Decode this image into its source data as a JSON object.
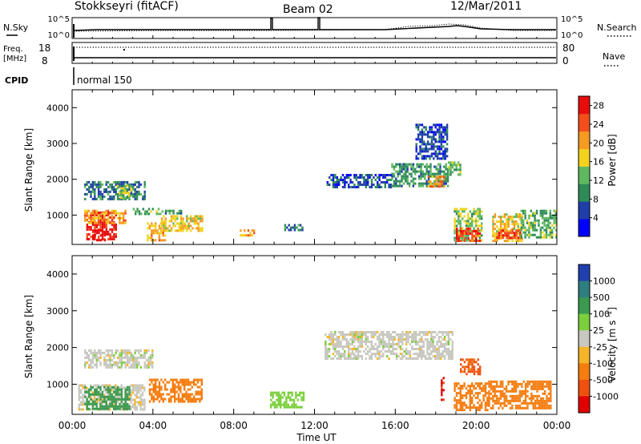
{
  "header": {
    "station": "Stokkseyri (fitACF)",
    "beam": "Beam 02",
    "date": "12/Mar/2011"
  },
  "strip": {
    "nsky_label": "N.Sky",
    "nsky_ticks": [
      "10^5",
      "10^0"
    ],
    "nsearch_label": "N.Search",
    "nsearch_ticks": [
      "10^5",
      "10^0"
    ],
    "freq_label": "Freq.",
    "freq_unit": "[MHz]",
    "freq_ticks": [
      "18",
      "8"
    ],
    "nave_label": "Nave",
    "nave_ticks": [
      "80",
      "0"
    ],
    "cpid_label": "CPID",
    "cpid_value": "normal 150"
  },
  "xaxis": {
    "ticks": [
      "00:00",
      "04:00",
      "08:00",
      "12:00",
      "16:00",
      "20:00",
      "00:00"
    ],
    "label": "Time UT"
  },
  "colors": {
    "power": [
      "#0000ff",
      "#1f3ea8",
      "#2e8b57",
      "#5fb85f",
      "#f2d21e",
      "#f59b22",
      "#f24f1c",
      "#e80d0d"
    ],
    "velocity": [
      "#2040b0",
      "#2e7f7f",
      "#3a9a50",
      "#7ccf3c",
      "#c8c8c0",
      "#f5b52a",
      "#f57d10",
      "#ee5010",
      "#e00000"
    ]
  },
  "chart_data": [
    {
      "type": "heatmap",
      "title": "",
      "xlabel": "",
      "ylabel": "Slant Range [km]",
      "xlim": [
        "00:00",
        "24:00"
      ],
      "ylim": [
        180,
        4500
      ],
      "yticks": [
        "1000",
        "2000",
        "3000",
        "4000"
      ],
      "colorbar": {
        "label": "Power [dB]",
        "ticks": [
          "4",
          "8",
          "12",
          "16",
          "20",
          "24",
          "28"
        ],
        "range": [
          0,
          30
        ]
      },
      "regions": [
        {
          "t0": 0.7,
          "t1": 2.2,
          "r0": 300,
          "r1": 1100,
          "value": 28
        },
        {
          "t0": 1.0,
          "t1": 1.6,
          "r0": 300,
          "r1": 600,
          "value": 30
        },
        {
          "t0": 0.5,
          "t1": 2.6,
          "r0": 800,
          "r1": 1150,
          "value": 20
        },
        {
          "t0": 0.6,
          "t1": 3.6,
          "r0": 1450,
          "r1": 1950,
          "value": 8
        },
        {
          "t0": 2.2,
          "t1": 2.9,
          "r0": 1500,
          "r1": 1850,
          "value": 14
        },
        {
          "t0": 3.0,
          "t1": 4.5,
          "r0": 1000,
          "r1": 1200,
          "value": 12
        },
        {
          "t0": 3.7,
          "t1": 4.6,
          "r0": 300,
          "r1": 800,
          "value": 20
        },
        {
          "t0": 4.4,
          "t1": 6.4,
          "r0": 550,
          "r1": 1000,
          "value": 18
        },
        {
          "t0": 4.5,
          "t1": 5.5,
          "r0": 1050,
          "r1": 1150,
          "value": 10
        },
        {
          "t0": 8.3,
          "t1": 9.0,
          "r0": 400,
          "r1": 600,
          "value": 20
        },
        {
          "t0": 10.5,
          "t1": 11.4,
          "r0": 550,
          "r1": 750,
          "value": 8
        },
        {
          "t0": 12.6,
          "t1": 15.8,
          "r0": 1750,
          "r1": 2150,
          "value": 6
        },
        {
          "t0": 15.8,
          "t1": 18.6,
          "r0": 1800,
          "r1": 2450,
          "value": 10
        },
        {
          "t0": 17.6,
          "t1": 18.4,
          "r0": 1800,
          "r1": 2100,
          "value": 22
        },
        {
          "t0": 18.6,
          "t1": 19.2,
          "r0": 2150,
          "r1": 2500,
          "value": 12
        },
        {
          "t0": 18.9,
          "t1": 20.3,
          "r0": 300,
          "r1": 1200,
          "value": 14
        },
        {
          "t0": 19.0,
          "t1": 20.2,
          "r0": 300,
          "r1": 650,
          "value": 26
        },
        {
          "t0": 20.8,
          "t1": 22.3,
          "r0": 300,
          "r1": 1050,
          "value": 18
        },
        {
          "t0": 21.0,
          "t1": 22.2,
          "r0": 350,
          "r1": 600,
          "value": 26
        },
        {
          "t0": 22.2,
          "t1": 24.0,
          "r0": 350,
          "r1": 1150,
          "value": 12
        },
        {
          "t0": 17.0,
          "t1": 18.6,
          "r0": 2600,
          "r1": 3550,
          "value": 6
        }
      ]
    },
    {
      "type": "heatmap",
      "title": "",
      "xlabel": "Time UT",
      "ylabel": "Slant Range [km]",
      "xlim": [
        "00:00",
        "24:00"
      ],
      "ylim": [
        180,
        4500
      ],
      "yticks": [
        "1000",
        "2000",
        "3000",
        "4000"
      ],
      "colorbar": {
        "label": "Velocity [m s^-1]",
        "ticks": [
          "1000",
          "500",
          "100",
          "25",
          "-25",
          "-100",
          "-500",
          "-1000"
        ]
      },
      "regions": [
        {
          "t0": 0.3,
          "t1": 3.6,
          "r0": 300,
          "r1": 1000,
          "value": -10
        },
        {
          "t0": 0.6,
          "t1": 2.8,
          "r0": 300,
          "r1": 950,
          "value": 200
        },
        {
          "t0": 3.8,
          "t1": 6.4,
          "r0": 500,
          "r1": 1150,
          "value": -150
        },
        {
          "t0": 0.6,
          "t1": 4.0,
          "r0": 1450,
          "r1": 1950,
          "value": 0
        },
        {
          "t0": 9.8,
          "t1": 11.5,
          "r0": 400,
          "r1": 800,
          "value": 60
        },
        {
          "t0": 12.5,
          "t1": 18.8,
          "r0": 1700,
          "r1": 2450,
          "value": 0
        },
        {
          "t0": 18.9,
          "t1": 20.6,
          "r0": 300,
          "r1": 1050,
          "value": -300
        },
        {
          "t0": 20.6,
          "t1": 23.7,
          "r0": 350,
          "r1": 1100,
          "value": -200
        },
        {
          "t0": 18.25,
          "t1": 18.4,
          "r0": 550,
          "r1": 1200,
          "value": -1200
        },
        {
          "t0": 19.2,
          "t1": 20.2,
          "r0": 1300,
          "r1": 1700,
          "value": -600
        }
      ]
    }
  ]
}
